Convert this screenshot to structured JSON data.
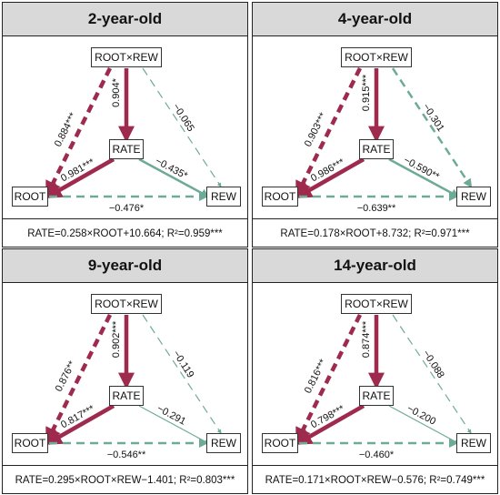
{
  "colors": {
    "positive": "#9e2a4e",
    "negative": "#6dab98",
    "header_bg": "#d9d9d9"
  },
  "panels": [
    {
      "title": "2-year-old",
      "nodes": {
        "top": "ROOT×REW",
        "center": "RATE",
        "left": "ROOT",
        "right": "REW"
      },
      "paths": {
        "top_left": {
          "label": "0.884***",
          "sign": "positive",
          "style": "dashed",
          "weight": "thick"
        },
        "top_center": {
          "label": "0.904*",
          "sign": "positive",
          "style": "solid",
          "weight": "thick"
        },
        "top_right": {
          "label": "−0.065",
          "sign": "negative",
          "style": "dashed",
          "weight": "thin"
        },
        "center_left": {
          "label": "0.981***",
          "sign": "positive",
          "style": "solid",
          "weight": "thick"
        },
        "center_right": {
          "label": "−0.435*",
          "sign": "negative",
          "style": "solid",
          "weight": "medium"
        },
        "left_right": {
          "label": "−0.476*",
          "sign": "negative",
          "style": "dashed",
          "weight": "medium"
        }
      },
      "equation": "RATE=0.258×ROOT+10.664; R²=0.959***"
    },
    {
      "title": "4-year-old",
      "nodes": {
        "top": "ROOT×REW",
        "center": "RATE",
        "left": "ROOT",
        "right": "REW"
      },
      "paths": {
        "top_left": {
          "label": "0.903***",
          "sign": "positive",
          "style": "dashed",
          "weight": "thick"
        },
        "top_center": {
          "label": "0.915***",
          "sign": "positive",
          "style": "solid",
          "weight": "thick"
        },
        "top_right": {
          "label": "−0.301",
          "sign": "negative",
          "style": "dashed",
          "weight": "medium"
        },
        "center_left": {
          "label": "0.986***",
          "sign": "positive",
          "style": "solid",
          "weight": "thick"
        },
        "center_right": {
          "label": "−0.590**",
          "sign": "negative",
          "style": "solid",
          "weight": "medium"
        },
        "left_right": {
          "label": "−0.639**",
          "sign": "negative",
          "style": "dashed",
          "weight": "medium"
        }
      },
      "equation": "RATE=0.178×ROOT+8.732; R²=0.971***"
    },
    {
      "title": "9-year-old",
      "nodes": {
        "top": "ROOT×REW",
        "center": "RATE",
        "left": "ROOT",
        "right": "REW"
      },
      "paths": {
        "top_left": {
          "label": "0.876**",
          "sign": "positive",
          "style": "dashed",
          "weight": "thick"
        },
        "top_center": {
          "label": "0.902***",
          "sign": "positive",
          "style": "solid",
          "weight": "thick"
        },
        "top_right": {
          "label": "−0.119",
          "sign": "negative",
          "style": "dashed",
          "weight": "thin"
        },
        "center_left": {
          "label": "0.817***",
          "sign": "positive",
          "style": "solid",
          "weight": "thick"
        },
        "center_right": {
          "label": "−0.291",
          "sign": "negative",
          "style": "solid",
          "weight": "thin"
        },
        "left_right": {
          "label": "−0.546**",
          "sign": "negative",
          "style": "dashed",
          "weight": "medium"
        }
      },
      "equation": "RATE=0.295×ROOT×REW−1.401; R²=0.803***"
    },
    {
      "title": "14-year-old",
      "nodes": {
        "top": "ROOT×REW",
        "center": "RATE",
        "left": "ROOT",
        "right": "REW"
      },
      "paths": {
        "top_left": {
          "label": "0.816***",
          "sign": "positive",
          "style": "dashed",
          "weight": "thick"
        },
        "top_center": {
          "label": "0.874***",
          "sign": "positive",
          "style": "solid",
          "weight": "thick"
        },
        "top_right": {
          "label": "−0.088",
          "sign": "negative",
          "style": "dashed",
          "weight": "thin"
        },
        "center_left": {
          "label": "0.798***",
          "sign": "positive",
          "style": "solid",
          "weight": "thick"
        },
        "center_right": {
          "label": "−0.200",
          "sign": "negative",
          "style": "solid",
          "weight": "thin"
        },
        "left_right": {
          "label": "−0.460*",
          "sign": "negative",
          "style": "dashed",
          "weight": "medium"
        }
      },
      "equation": "RATE=0.171×ROOT×REW−0.576; R²=0.749***"
    }
  ]
}
